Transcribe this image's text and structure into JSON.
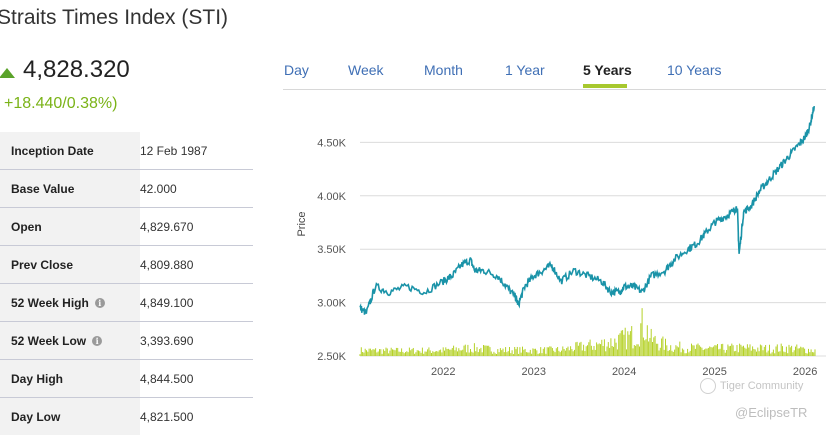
{
  "index": {
    "title": "Straits Times Index (STI)",
    "price": "4,828.320",
    "change": "+18.440/0.38%)",
    "colors": {
      "up": "#5aa32a",
      "change": "#7ab317",
      "accent": "#a7c82e",
      "line": "#1a93a8",
      "volume": "#b5d127"
    }
  },
  "stats": [
    {
      "label": "Inception Date",
      "value": "12 Feb 1987",
      "info": false
    },
    {
      "label": "Base Value",
      "value": "42.000",
      "info": false
    },
    {
      "label": "Open",
      "value": "4,829.670",
      "info": false
    },
    {
      "label": "Prev Close",
      "value": "4,809.880",
      "info": false
    },
    {
      "label": "52 Week High",
      "value": "4,849.100",
      "info": true
    },
    {
      "label": "52 Week Low",
      "value": "3,393.690",
      "info": true
    },
    {
      "label": "Day High",
      "value": "4,844.500",
      "info": false
    },
    {
      "label": "Day Low",
      "value": "4,821.500",
      "info": false
    }
  ],
  "tabs": [
    {
      "label": "Day",
      "active": false
    },
    {
      "label": "Week",
      "active": false
    },
    {
      "label": "Month",
      "active": false
    },
    {
      "label": "1 Year",
      "active": false
    },
    {
      "label": "5 Years",
      "active": true
    },
    {
      "label": "10 Years",
      "active": false
    }
  ],
  "info_icon_glyph": "i",
  "watermarks": {
    "community": "Tiger Community",
    "handle": "@EclipseTR"
  },
  "chart_data": {
    "type": "line",
    "title": "",
    "xlabel": "",
    "ylabel": "Price",
    "x_range": [
      2021.08,
      2026.12
    ],
    "ylim": [
      2500,
      4850
    ],
    "y_ticks": [
      2500,
      3000,
      3500,
      4000,
      4500
    ],
    "y_tick_labels": [
      "2.50K",
      "3.00K",
      "3.50K",
      "4.00K",
      "4.50K"
    ],
    "x_ticks": [
      2022,
      2023,
      2024,
      2025,
      2026
    ],
    "x_tick_labels": [
      "2022",
      "2023",
      "2024",
      "2025",
      "2026"
    ],
    "series": [
      {
        "name": "Price",
        "x": [
          2021.08,
          2021.15,
          2021.25,
          2021.4,
          2021.6,
          2021.8,
          2022.0,
          2022.1,
          2022.2,
          2022.3,
          2022.35,
          2022.45,
          2022.6,
          2022.7,
          2022.8,
          2022.83,
          2022.9,
          2023.0,
          2023.1,
          2023.2,
          2023.3,
          2023.45,
          2023.6,
          2023.75,
          2023.85,
          2023.95,
          2024.0,
          2024.1,
          2024.2,
          2024.3,
          2024.45,
          2024.55,
          2024.7,
          2024.8,
          2024.9,
          2025.0,
          2025.1,
          2025.2,
          2025.25,
          2025.27,
          2025.32,
          2025.4,
          2025.5,
          2025.6,
          2025.7,
          2025.8,
          2025.9,
          2026.0,
          2026.05,
          2026.1
        ],
        "values": [
          2950,
          2900,
          3150,
          3100,
          3150,
          3100,
          3200,
          3250,
          3350,
          3400,
          3300,
          3300,
          3250,
          3150,
          3050,
          2980,
          3150,
          3250,
          3300,
          3350,
          3200,
          3300,
          3250,
          3200,
          3100,
          3100,
          3150,
          3150,
          3100,
          3250,
          3300,
          3400,
          3500,
          3550,
          3650,
          3750,
          3800,
          3850,
          3900,
          3450,
          3850,
          3900,
          4050,
          4150,
          4250,
          4350,
          4450,
          4550,
          4650,
          4840
        ]
      },
      {
        "name": "Volume",
        "x": [
          2021.08,
          2021.5,
          2022.0,
          2022.3,
          2022.6,
          2023.0,
          2023.3,
          2023.5,
          2023.7,
          2023.9,
          2024.1,
          2024.15,
          2024.22,
          2024.3,
          2024.5,
          2024.7,
          2025.0,
          2025.3,
          2025.6,
          2025.8,
          2026.0,
          2026.12
        ],
        "values": [
          2570,
          2565,
          2570,
          2600,
          2575,
          2570,
          2575,
          2610,
          2640,
          2680,
          2750,
          2820,
          2900,
          2700,
          2620,
          2600,
          2590,
          2600,
          2590,
          2600,
          2580,
          2570
        ]
      }
    ]
  }
}
